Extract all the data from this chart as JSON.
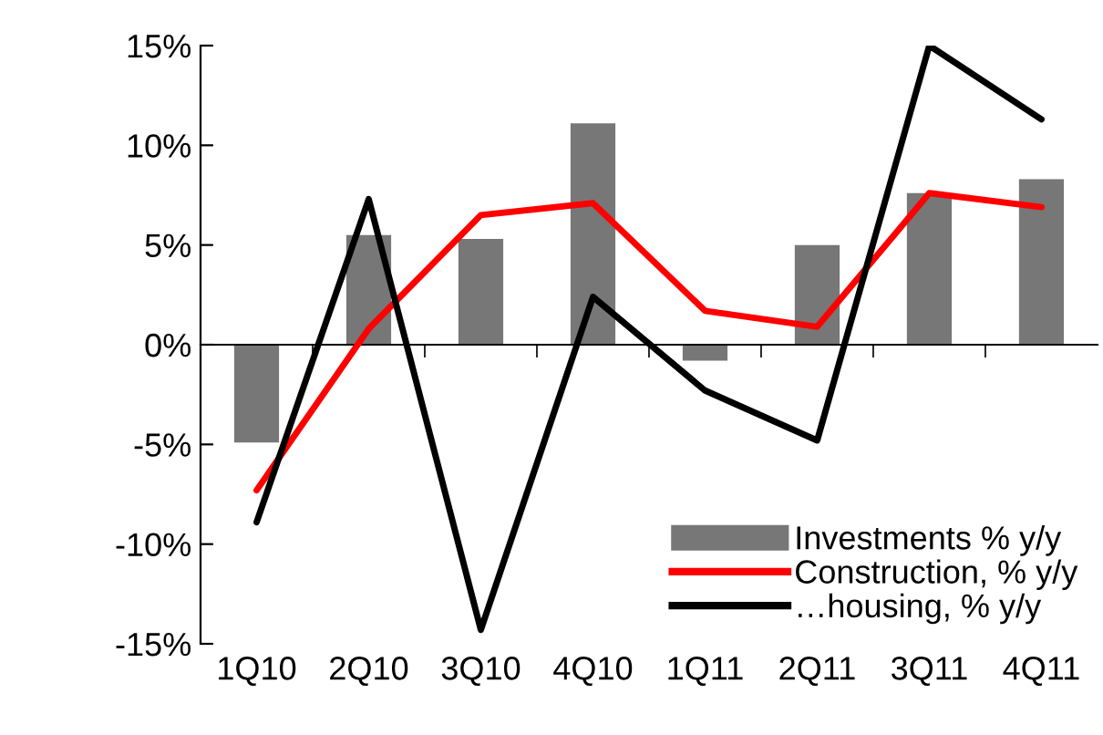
{
  "chart_data": {
    "type": "bar",
    "categories": [
      "1Q10",
      "2Q10",
      "3Q10",
      "4Q10",
      "1Q11",
      "2Q11",
      "3Q11",
      "4Q11"
    ],
    "series": [
      {
        "name": "Investments % y/y",
        "color": "#777777",
        "values": [
          -4.9,
          5.5,
          5.3,
          11.1,
          -0.8,
          5.0,
          7.6,
          8.3
        ]
      },
      {
        "name": "Construction, % y/y",
        "type": "line",
        "color": "#ff0000",
        "values": [
          -7.3,
          0.8,
          6.5,
          7.1,
          1.7,
          0.9,
          7.6,
          6.9
        ]
      },
      {
        "name": "…housing, % y/y",
        "type": "line",
        "color": "#000000",
        "values": [
          -8.9,
          7.3,
          -14.3,
          2.4,
          -2.3,
          -4.8,
          15.0,
          11.3
        ]
      }
    ],
    "ylim": [
      -15,
      15
    ],
    "yticks": [
      {
        "value": -15,
        "label": "-15%"
      },
      {
        "value": -10,
        "label": "-10%"
      },
      {
        "value": -5,
        "label": "-5%"
      },
      {
        "value": 0,
        "label": "0%"
      },
      {
        "value": 5,
        "label": "5%"
      },
      {
        "value": 10,
        "label": "10%"
      },
      {
        "value": 15,
        "label": "15%"
      }
    ],
    "legend": "bottom right"
  }
}
